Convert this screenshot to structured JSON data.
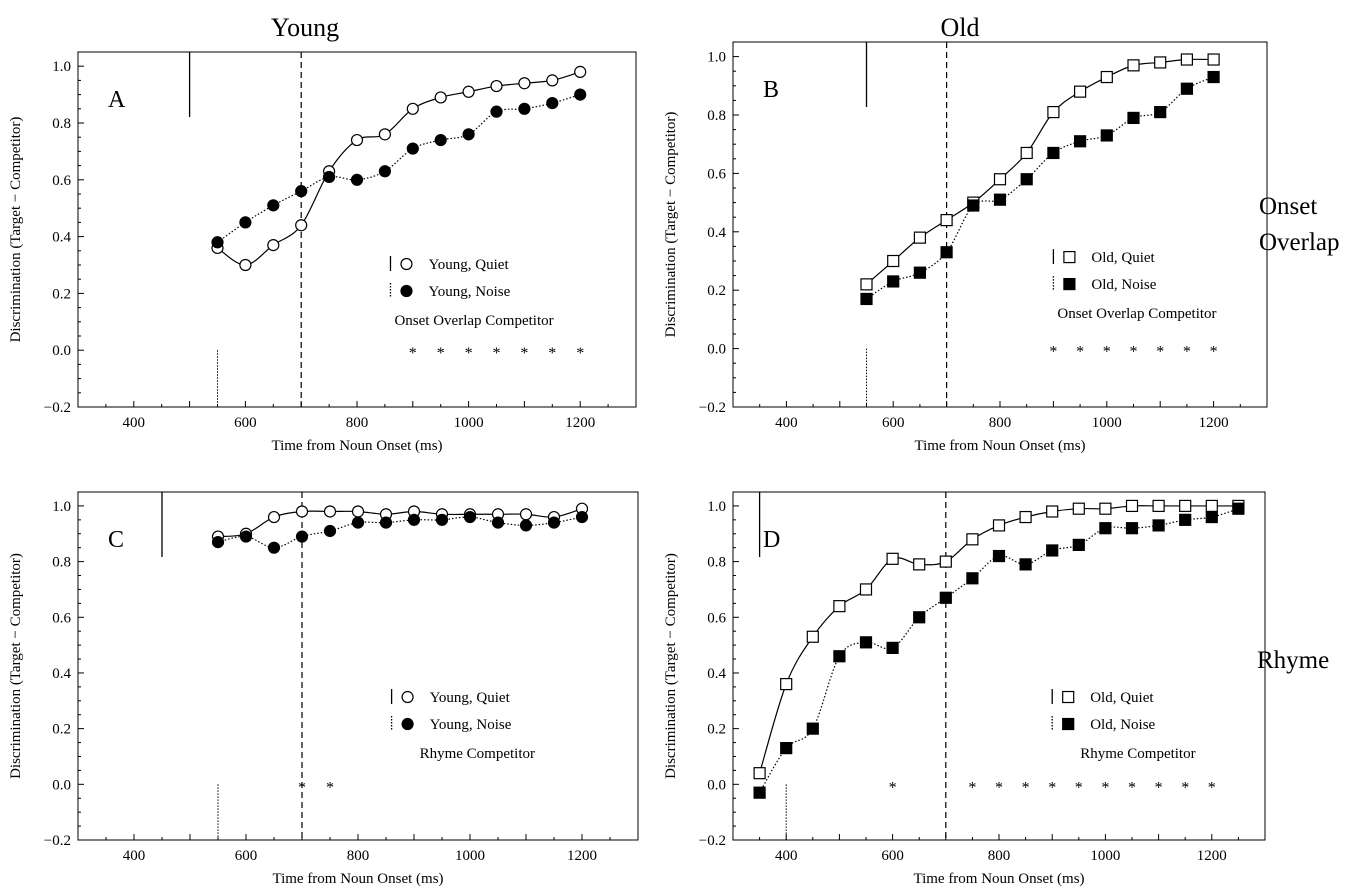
{
  "column_titles": [
    "Young",
    "Old"
  ],
  "row_titles": {
    "onset": "Onset Overlap",
    "rhyme": "Rhyme"
  },
  "chart_data": [
    {
      "type": "line",
      "panel": "A",
      "xlabel": "Time from Noun Onset (ms)",
      "ylabel": "Discrimination  (Target  −  Competitor)",
      "xlim": [
        300,
        1300
      ],
      "ylim": [
        -0.2,
        1.05
      ],
      "xticks": [
        400,
        600,
        800,
        1000,
        1200
      ],
      "yticks": [
        -0.2,
        0.0,
        0.2,
        0.4,
        0.6,
        0.8,
        1.0
      ],
      "ytick_labels": [
        "−0.2",
        "0.0",
        "0.2",
        "0.4",
        "0.6",
        "0.8",
        "1.0"
      ],
      "competitor_label": "Onset Overlap Competitor",
      "marker_shape": "circle",
      "solid_vline_x": 500,
      "dotted_vline_x": 550,
      "dashed_vline_x": 700,
      "significance_stars_x": [
        900,
        950,
        1000,
        1050,
        1100,
        1150,
        1200
      ],
      "star_symbol": "*",
      "series": [
        {
          "name": "Young, Quiet",
          "line": "solid",
          "fill": "open",
          "x": [
            550,
            600,
            650,
            700,
            750,
            800,
            850,
            900,
            950,
            1000,
            1050,
            1100,
            1150,
            1200
          ],
          "y": [
            0.36,
            0.3,
            0.37,
            0.44,
            0.63,
            0.74,
            0.76,
            0.85,
            0.89,
            0.91,
            0.93,
            0.94,
            0.95,
            0.98
          ]
        },
        {
          "name": "Young, Noise",
          "line": "dotted",
          "fill": "filled",
          "x": [
            550,
            600,
            650,
            700,
            750,
            800,
            850,
            900,
            950,
            1000,
            1050,
            1100,
            1150,
            1200
          ],
          "y": [
            0.38,
            0.45,
            0.51,
            0.56,
            0.61,
            0.6,
            0.63,
            0.71,
            0.74,
            0.76,
            0.84,
            0.85,
            0.87,
            0.9
          ]
        }
      ]
    },
    {
      "type": "line",
      "panel": "B",
      "xlabel": "Time from Noun Onset (ms)",
      "ylabel": "Discrimination  (Target  −  Competitor)",
      "xlim": [
        300,
        1300
      ],
      "ylim": [
        -0.2,
        1.05
      ],
      "xticks": [
        400,
        600,
        800,
        1000,
        1200
      ],
      "yticks": [
        -0.2,
        0.0,
        0.2,
        0.4,
        0.6,
        0.8,
        1.0
      ],
      "ytick_labels": [
        "−0.2",
        "0.0",
        "0.2",
        "0.4",
        "0.6",
        "0.8",
        "1.0"
      ],
      "competitor_label": "Onset Overlap Competitor",
      "marker_shape": "square",
      "solid_vline_x": 550,
      "dotted_vline_x": 550,
      "dashed_vline_x": 700,
      "significance_stars_x": [
        900,
        950,
        1000,
        1050,
        1100,
        1150,
        1200
      ],
      "star_symbol": "*",
      "series": [
        {
          "name": "Old, Quiet",
          "line": "solid",
          "fill": "open",
          "x": [
            550,
            600,
            650,
            700,
            750,
            800,
            850,
            900,
            950,
            1000,
            1050,
            1100,
            1150,
            1200
          ],
          "y": [
            0.22,
            0.3,
            0.38,
            0.44,
            0.5,
            0.58,
            0.67,
            0.81,
            0.88,
            0.93,
            0.97,
            0.98,
            0.99,
            0.99
          ]
        },
        {
          "name": "Old, Noise",
          "line": "dotted",
          "fill": "filled",
          "x": [
            550,
            600,
            650,
            700,
            750,
            800,
            850,
            900,
            950,
            1000,
            1050,
            1100,
            1150,
            1200
          ],
          "y": [
            0.17,
            0.23,
            0.26,
            0.33,
            0.49,
            0.51,
            0.58,
            0.67,
            0.71,
            0.73,
            0.79,
            0.81,
            0.89,
            0.93
          ]
        }
      ]
    },
    {
      "type": "line",
      "panel": "C",
      "xlabel": "Time from Noun Onset (ms)",
      "ylabel": "Discrimination  (Target  −  Competitor)",
      "xlim": [
        300,
        1300
      ],
      "ylim": [
        -0.2,
        1.05
      ],
      "xticks": [
        400,
        600,
        800,
        1000,
        1200
      ],
      "yticks": [
        -0.2,
        0.0,
        0.2,
        0.4,
        0.6,
        0.8,
        1.0
      ],
      "ytick_labels": [
        "−0.2",
        "0.0",
        "0.2",
        "0.4",
        "0.6",
        "0.8",
        "1.0"
      ],
      "competitor_label": "Rhyme Competitor",
      "marker_shape": "circle",
      "solid_vline_x": 450,
      "dotted_vline_x": 550,
      "dashed_vline_x": 700,
      "significance_stars_x": [
        700,
        750
      ],
      "star_symbol": "*",
      "series": [
        {
          "name": "Young, Quiet",
          "line": "solid",
          "fill": "open",
          "x": [
            550,
            600,
            650,
            700,
            750,
            800,
            850,
            900,
            950,
            1000,
            1050,
            1100,
            1150,
            1200
          ],
          "y": [
            0.89,
            0.9,
            0.96,
            0.98,
            0.98,
            0.98,
            0.97,
            0.98,
            0.97,
            0.97,
            0.97,
            0.97,
            0.96,
            0.99
          ]
        },
        {
          "name": "Young, Noise",
          "line": "dotted",
          "fill": "filled",
          "x": [
            550,
            600,
            650,
            700,
            750,
            800,
            850,
            900,
            950,
            1000,
            1050,
            1100,
            1150,
            1200
          ],
          "y": [
            0.87,
            0.89,
            0.85,
            0.89,
            0.91,
            0.94,
            0.94,
            0.95,
            0.95,
            0.96,
            0.94,
            0.93,
            0.94,
            0.96
          ]
        }
      ]
    },
    {
      "type": "line",
      "panel": "D",
      "xlabel": "Time from Noun Onset (ms)",
      "ylabel": "Discrimination  (Target  −  Competitor)",
      "xlim": [
        300,
        1300
      ],
      "ylim": [
        -0.2,
        1.05
      ],
      "xticks": [
        400,
        600,
        800,
        1000,
        1200
      ],
      "yticks": [
        -0.2,
        0.0,
        0.2,
        0.4,
        0.6,
        0.8,
        1.0
      ],
      "ytick_labels": [
        "−0.2",
        "0.0",
        "0.2",
        "0.4",
        "0.6",
        "0.8",
        "1.0"
      ],
      "competitor_label": "Rhyme Competitor",
      "marker_shape": "square",
      "solid_vline_x": 350,
      "dotted_vline_x": 400,
      "dashed_vline_x": 700,
      "significance_stars_x": [
        600,
        750,
        800,
        850,
        900,
        950,
        1000,
        1050,
        1100,
        1150,
        1200
      ],
      "star_symbol": "*",
      "series": [
        {
          "name": "Old, Quiet",
          "line": "solid",
          "fill": "open",
          "x": [
            350,
            400,
            450,
            500,
            550,
            600,
            650,
            700,
            750,
            800,
            850,
            900,
            950,
            1000,
            1050,
            1100,
            1150,
            1200,
            1250
          ],
          "y": [
            0.04,
            0.36,
            0.53,
            0.64,
            0.7,
            0.81,
            0.79,
            0.8,
            0.88,
            0.93,
            0.96,
            0.98,
            0.99,
            0.99,
            1.0,
            1.0,
            1.0,
            1.0,
            1.0
          ]
        },
        {
          "name": "Old, Noise",
          "line": "dotted",
          "fill": "filled",
          "x": [
            350,
            400,
            450,
            500,
            550,
            600,
            650,
            700,
            750,
            800,
            850,
            900,
            950,
            1000,
            1050,
            1100,
            1150,
            1200,
            1250
          ],
          "y": [
            -0.03,
            0.13,
            0.2,
            0.46,
            0.51,
            0.49,
            0.6,
            0.67,
            0.74,
            0.82,
            0.79,
            0.84,
            0.86,
            0.92,
            0.92,
            0.93,
            0.95,
            0.96,
            0.99
          ]
        }
      ]
    }
  ]
}
